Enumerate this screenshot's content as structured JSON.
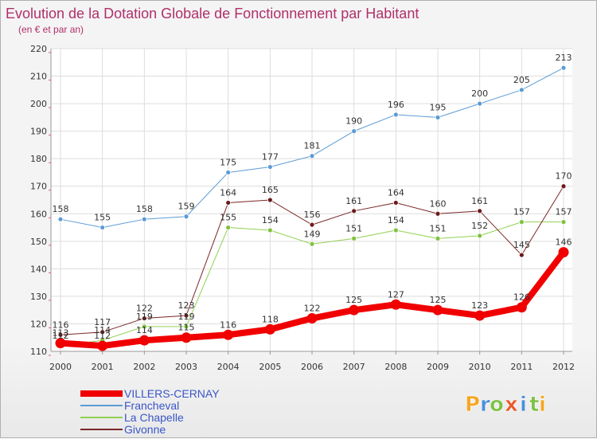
{
  "title": "Evolution de la Dotation Globale de Fonctionnement par Habitant",
  "subtitle": "(en € et par an)",
  "logo": {
    "letters": [
      "P",
      "r",
      "o",
      "x",
      "i",
      "t",
      "i"
    ],
    "colors": [
      "#f5a623",
      "#4a8fd9",
      "#7cc242",
      "#e85b2c",
      "#4a8fd9",
      "#7cc242",
      "#f5a623"
    ]
  },
  "chart_data": {
    "type": "line",
    "x": [
      "2000",
      "2001",
      "2002",
      "2003",
      "2004",
      "2005",
      "2006",
      "2007",
      "2008",
      "2009",
      "2010",
      "2011",
      "2012"
    ],
    "ylim": [
      110,
      220
    ],
    "yticks": [
      110,
      120,
      130,
      140,
      150,
      160,
      170,
      180,
      190,
      200,
      210,
      220
    ],
    "grid": true,
    "legend_position": "bottom-left",
    "series": [
      {
        "name": "VILLERS-CERNAY",
        "color": "#f00000",
        "width": 8,
        "marker": "#f00000",
        "values": [
          113,
          112,
          114,
          115,
          116,
          118,
          122,
          125,
          127,
          125,
          123,
          126,
          146
        ]
      },
      {
        "name": "Francheval",
        "color": "#5b9bd5",
        "width": 1,
        "marker": "#5b9bd5",
        "values": [
          158,
          155,
          158,
          159,
          175,
          177,
          181,
          190,
          196,
          195,
          200,
          205,
          213
        ]
      },
      {
        "name": "La Chapelle",
        "color": "#92d050",
        "width": 1,
        "marker": "#7fc241",
        "values": [
          112,
          114,
          119,
          119,
          155,
          154,
          149,
          151,
          154,
          151,
          152,
          157,
          157
        ]
      },
      {
        "name": "Givonne",
        "color": "#7a2626",
        "width": 1,
        "marker": "#6b1a1a",
        "values": [
          116,
          117,
          122,
          123,
          164,
          165,
          156,
          161,
          164,
          160,
          161,
          145,
          170
        ]
      }
    ]
  }
}
